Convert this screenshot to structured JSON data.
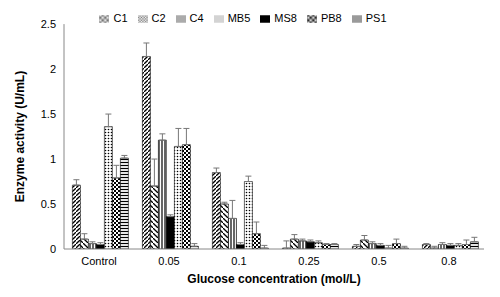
{
  "chart_data": {
    "type": "bar",
    "x_label": "Glucose concentration (mol/L)",
    "y_label": "Enzyme activity (U/mL)",
    "categories": [
      "Control",
      "0.05",
      "0.1",
      "0.25",
      "0.5",
      "0.8"
    ],
    "ylim": [
      0,
      2.5
    ],
    "yticks": [
      0,
      0.5,
      1,
      1.5,
      2,
      2.5
    ],
    "grid": false,
    "legend": "top",
    "series": [
      {
        "name": "C1",
        "color": "#000000",
        "values": [
          0.71,
          2.14,
          0.85,
          0.01,
          0.03,
          0.05
        ],
        "errors": [
          0.06,
          0.15,
          0.05,
          0.08,
          0.02,
          0.01
        ]
      },
      {
        "name": "C2",
        "color": "#000000",
        "values": [
          0.11,
          0.7,
          0.5,
          0.11,
          0.1,
          0.01
        ],
        "errors": [
          0.06,
          0.3,
          0.02,
          0.05,
          0.05,
          0.02
        ]
      },
      {
        "name": "C4",
        "color": "#000000",
        "values": [
          0.06,
          1.21,
          0.34,
          0.09,
          0.06,
          0.05
        ],
        "errors": [
          0.02,
          0.07,
          0.2,
          0.02,
          0.02,
          0.02
        ]
      },
      {
        "name": "MS8",
        "color": "#000000",
        "values": [
          0.05,
          0.36,
          0.05,
          0.08,
          0.04,
          0.04
        ],
        "errors": [
          0.02,
          0.02,
          0.02,
          0.02,
          0.02,
          0.02
        ]
      },
      {
        "name": "MB5",
        "color": "#000000",
        "values": [
          1.36,
          1.14,
          0.75,
          0.07,
          0.01,
          0.04
        ],
        "errors": [
          0.14,
          0.2,
          0.06,
          0.02,
          0.03,
          0.02
        ]
      },
      {
        "name": "PB8",
        "color": "#000000",
        "values": [
          0.79,
          1.16,
          0.17,
          0.05,
          0.06,
          0.05
        ],
        "errors": [
          0.14,
          0.18,
          0.13,
          0.01,
          0.05,
          0.05
        ]
      },
      {
        "name": "PS1",
        "color": "#000000",
        "values": [
          1.01,
          0.03,
          0.01,
          0.05,
          0.01,
          0.08
        ],
        "errors": [
          0.03,
          0.03,
          0.03,
          0.01,
          0.02,
          0.05
        ]
      }
    ]
  }
}
